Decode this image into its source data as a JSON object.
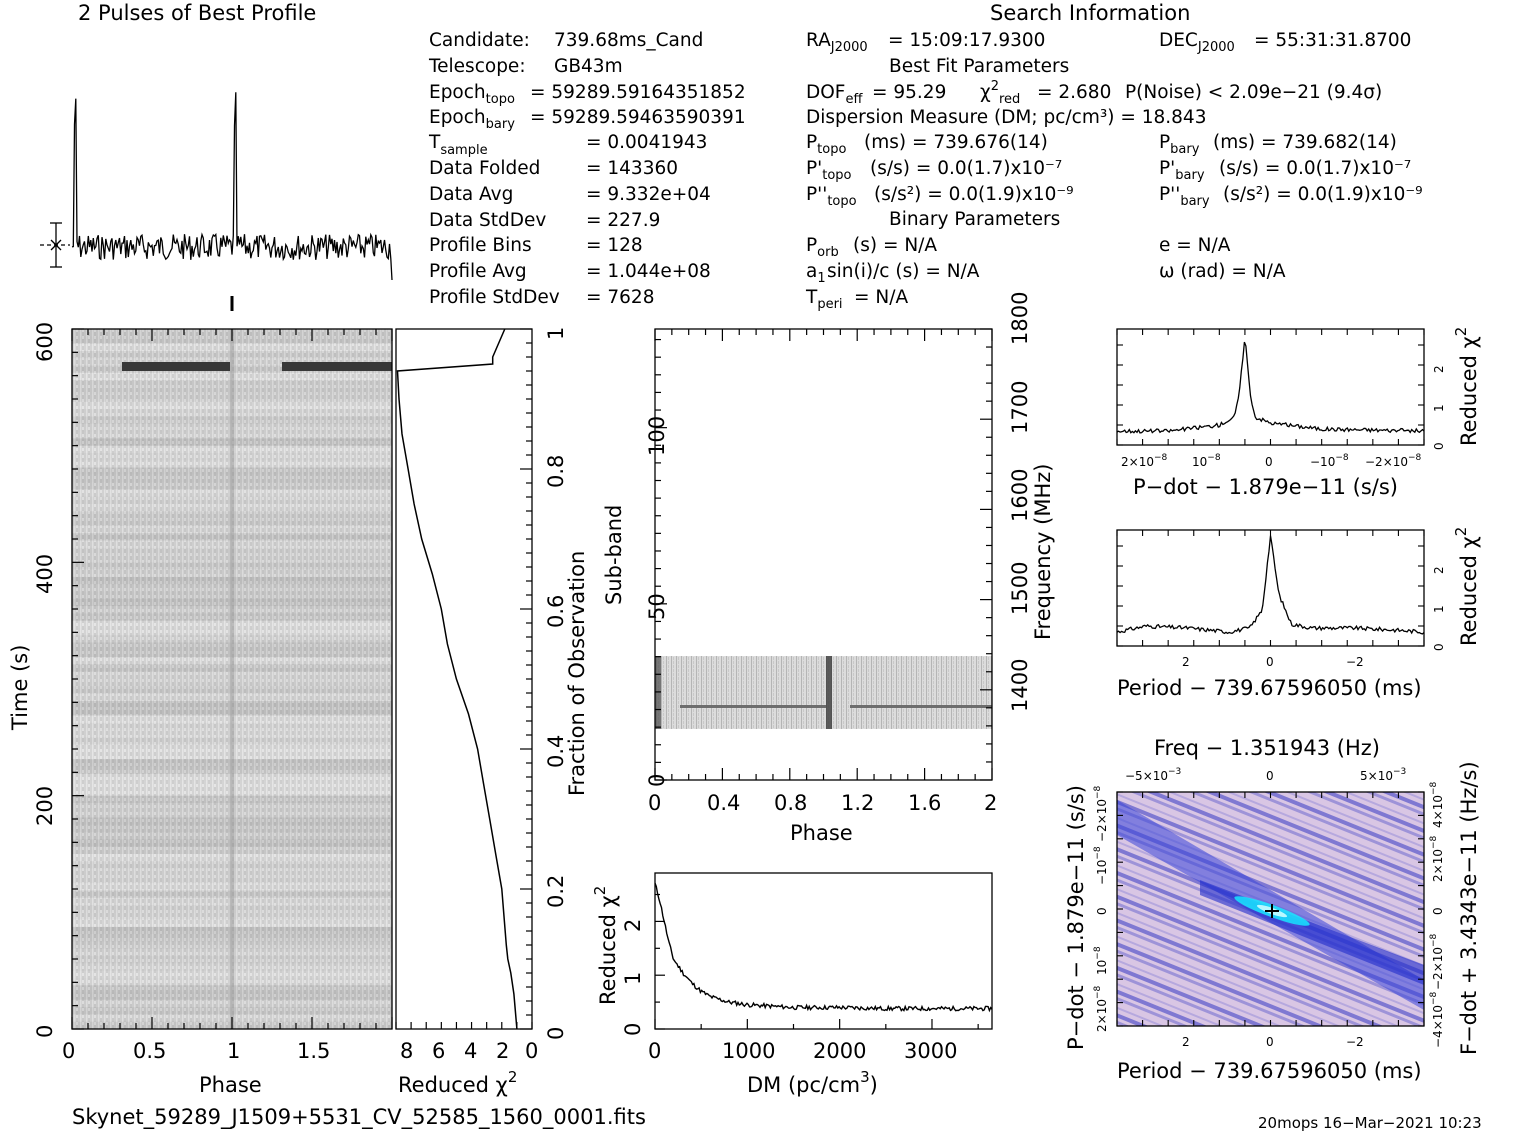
{
  "headers": {
    "profile_title": "2 Pulses of Best Profile",
    "search_title": "Search Information",
    "best_fit": "Best Fit Parameters",
    "binary": "Binary Parameters"
  },
  "info_left": [
    {
      "label": "Candidate:",
      "value": "739.68ms_Cand"
    },
    {
      "label": "Telescope:",
      "value": "GB43m"
    },
    {
      "label": "Epoch_topo",
      "value": "= 59289.59164351852"
    },
    {
      "label": "Epoch_bary",
      "value": "= 59289.59463590391"
    },
    {
      "label": "T_sample",
      "value": "= 0.0041943"
    },
    {
      "label": "Data Folded",
      "value": "= 143360"
    },
    {
      "label": "Data Avg",
      "value": "= 9.332e+04"
    },
    {
      "label": "Data StdDev",
      "value": "= 227.9"
    },
    {
      "label": "Profile Bins",
      "value": "= 128"
    },
    {
      "label": "Profile Avg",
      "value": "= 1.044e+08"
    },
    {
      "label": "Profile StdDev",
      "value": "= 7628"
    }
  ],
  "info_mid": {
    "ra": "= 15:09:17.9300",
    "dof": "= 95.29",
    "chi2": "= 2.680",
    "pnoise": "P(Noise) < 2.09e−21   (9.4σ)",
    "dm": "Dispersion Measure (DM; pc/cm³) = 18.843",
    "ptopo": "(ms)  =   739.676(14)",
    "pdtopo": "(s/s) = 0.0(1.7)x10⁻⁷",
    "pddtopo": "(s/s²) = 0.0(1.9)x10⁻⁹",
    "porb": "(s) = N/A",
    "a1": "sin(i)/c (s) = N/A",
    "tperi": "= N/A"
  },
  "info_right": {
    "dec": "= 55:31:31.8700",
    "pbary": "(ms)  =   739.682(14)",
    "pdbary": "(s/s) = 0.0(1.7)x10⁻⁷",
    "pddbary": "(s/s²) = 0.0(1.9)x10⁻⁹",
    "ecc": "e = N/A",
    "omega": "ω (rad) = N/A"
  },
  "footer": {
    "filename": "Skynet_59289_J1509+5531_CV_52585_1560_0001.fits",
    "stamp": "20mops 16−Mar−2021 10:23"
  },
  "chart_data": [
    {
      "type": "line",
      "title": "2 Pulses of Best Profile",
      "x_range": [
        0,
        2
      ],
      "peaks_at_phase": [
        0.02,
        1.02
      ]
    },
    {
      "type": "heatmap",
      "xlabel": "Phase",
      "ylabel": "Time (s)",
      "xlim": [
        0,
        2
      ],
      "ylim": [
        0,
        600
      ],
      "x_ticks": [
        "0",
        "0.5",
        "1",
        "1.5"
      ],
      "y_ticks": [
        "0",
        "200",
        "400",
        "600"
      ]
    },
    {
      "type": "line",
      "xlabel": "Reduced χ²",
      "ylabel": "Fraction of Observation",
      "xlim": [
        9,
        0
      ],
      "ylim": [
        0,
        1
      ],
      "x_ticks": [
        "8",
        "6",
        "4",
        "2",
        "0"
      ],
      "y_ticks": [
        "0",
        "0.2",
        "0.4",
        "0.6",
        "0.8",
        "1"
      ],
      "x": [
        1.0,
        1.2,
        1.4,
        1.6,
        1.7,
        2.0,
        2.4,
        2.8,
        3.2,
        3.6,
        4.2,
        5.0,
        5.6,
        6.0,
        6.6,
        7.3,
        7.8,
        8.2,
        8.6,
        8.8,
        8.9,
        2.6,
        2.6,
        1.8
      ],
      "y": [
        0.0,
        0.05,
        0.08,
        0.1,
        0.12,
        0.2,
        0.25,
        0.3,
        0.35,
        0.4,
        0.45,
        0.5,
        0.55,
        0.6,
        0.65,
        0.7,
        0.75,
        0.8,
        0.85,
        0.9,
        0.94,
        0.95,
        0.96,
        1.0
      ]
    },
    {
      "type": "heatmap",
      "xlabel": "Phase",
      "ylabel": "Sub-band",
      "y2label": "Frequency (MHz)",
      "xlim": [
        0,
        2
      ],
      "ylim": [
        0,
        128
      ],
      "y2lim": [
        1310,
        1810
      ],
      "x_ticks": [
        "0",
        "0.4",
        "0.8",
        "1.2",
        "1.6",
        "2"
      ],
      "y_ticks": [
        "0",
        "50",
        "100"
      ],
      "y2_ticks": [
        "1400",
        "1500",
        "1600",
        "1700",
        "1800"
      ],
      "data_band": [
        14,
        35
      ]
    },
    {
      "type": "line",
      "xlabel": "DM (pc/cm³)",
      "ylabel": "Reduced χ²",
      "xlim": [
        0,
        3650
      ],
      "ylim": [
        0,
        2.9
      ],
      "x_ticks": [
        "0",
        "1000",
        "2000",
        "3000"
      ],
      "y_ticks": [
        "0",
        "1",
        "2"
      ],
      "x": [
        0,
        50,
        100,
        150,
        200,
        300,
        400,
        500,
        600,
        800,
        1000,
        1500,
        2000,
        2500,
        3000,
        3500,
        3650
      ],
      "y": [
        2.7,
        2.4,
        2.0,
        1.6,
        1.3,
        1.05,
        0.85,
        0.7,
        0.6,
        0.5,
        0.45,
        0.4,
        0.4,
        0.38,
        0.38,
        0.38,
        0.38
      ]
    },
    {
      "type": "line",
      "xlabel": "P−dot − 1.879e−11 (s/s)",
      "ylabel": "Reduced χ²",
      "xlim": [
        2.5e-08,
        -3.5e-08
      ],
      "ylim": [
        0,
        2.9
      ],
      "x_ticks": [
        "2×10⁻⁸",
        "10⁻⁸",
        "0",
        "−10⁻⁸",
        "−2×10⁻⁸"
      ],
      "y_ticks": [
        "0",
        "1",
        "2"
      ],
      "x": [
        2.5e-08,
        1.5e-08,
        5e-09,
        2e-09,
        1e-09,
        0,
        -1e-09,
        -2e-09,
        -5e-09,
        -1.5e-08,
        -3.5e-08
      ],
      "y": [
        0.35,
        0.35,
        0.5,
        0.7,
        1.4,
        2.75,
        1.3,
        0.7,
        0.55,
        0.4,
        0.35
      ]
    },
    {
      "type": "line",
      "xlabel": "Period − 739.67596050 (ms)",
      "ylabel": "Reduced χ²",
      "xlim": [
        3.7,
        -3.7
      ],
      "ylim": [
        0,
        2.9
      ],
      "x_ticks": [
        "2",
        "0",
        "−2"
      ],
      "y_ticks": [
        "0",
        "1",
        "2"
      ],
      "x": [
        3.7,
        3.0,
        2.0,
        1.0,
        0.5,
        0.2,
        0,
        -0.2,
        -0.5,
        -1.0,
        -2.0,
        -3.0,
        -3.7
      ],
      "y": [
        0.35,
        0.5,
        0.45,
        0.35,
        0.45,
        0.9,
        2.75,
        1.3,
        0.55,
        0.45,
        0.45,
        0.4,
        0.35
      ]
    },
    {
      "type": "heatmap",
      "title": "Freq − 1.351943 (Hz)",
      "xlabel": "Period − 739.67596050 (ms)",
      "ylabel": "P−dot − 1.879e−11 (s/s)",
      "y2label": "F−dot + 3.4343e−11 (Hz/s)",
      "x_ticks": [
        "2",
        "0",
        "−2"
      ],
      "x2_ticks": [
        "−5×10⁻³",
        "0",
        "5×10⁻³"
      ],
      "y_ticks": [
        "2×10⁻⁸",
        "10⁻⁸",
        "0",
        "−10⁻⁸",
        "−2×10⁻⁸"
      ],
      "y2_ticks": [
        "−4×10⁻⁸",
        "−2×10⁻⁸",
        "0",
        "2×10⁻⁸",
        "4×10⁻⁸"
      ],
      "peak": [
        0,
        0
      ],
      "colors": {
        "background": "#d8c4e2",
        "stripe": "#2a38d2",
        "peak": "#19e8ff"
      }
    }
  ]
}
